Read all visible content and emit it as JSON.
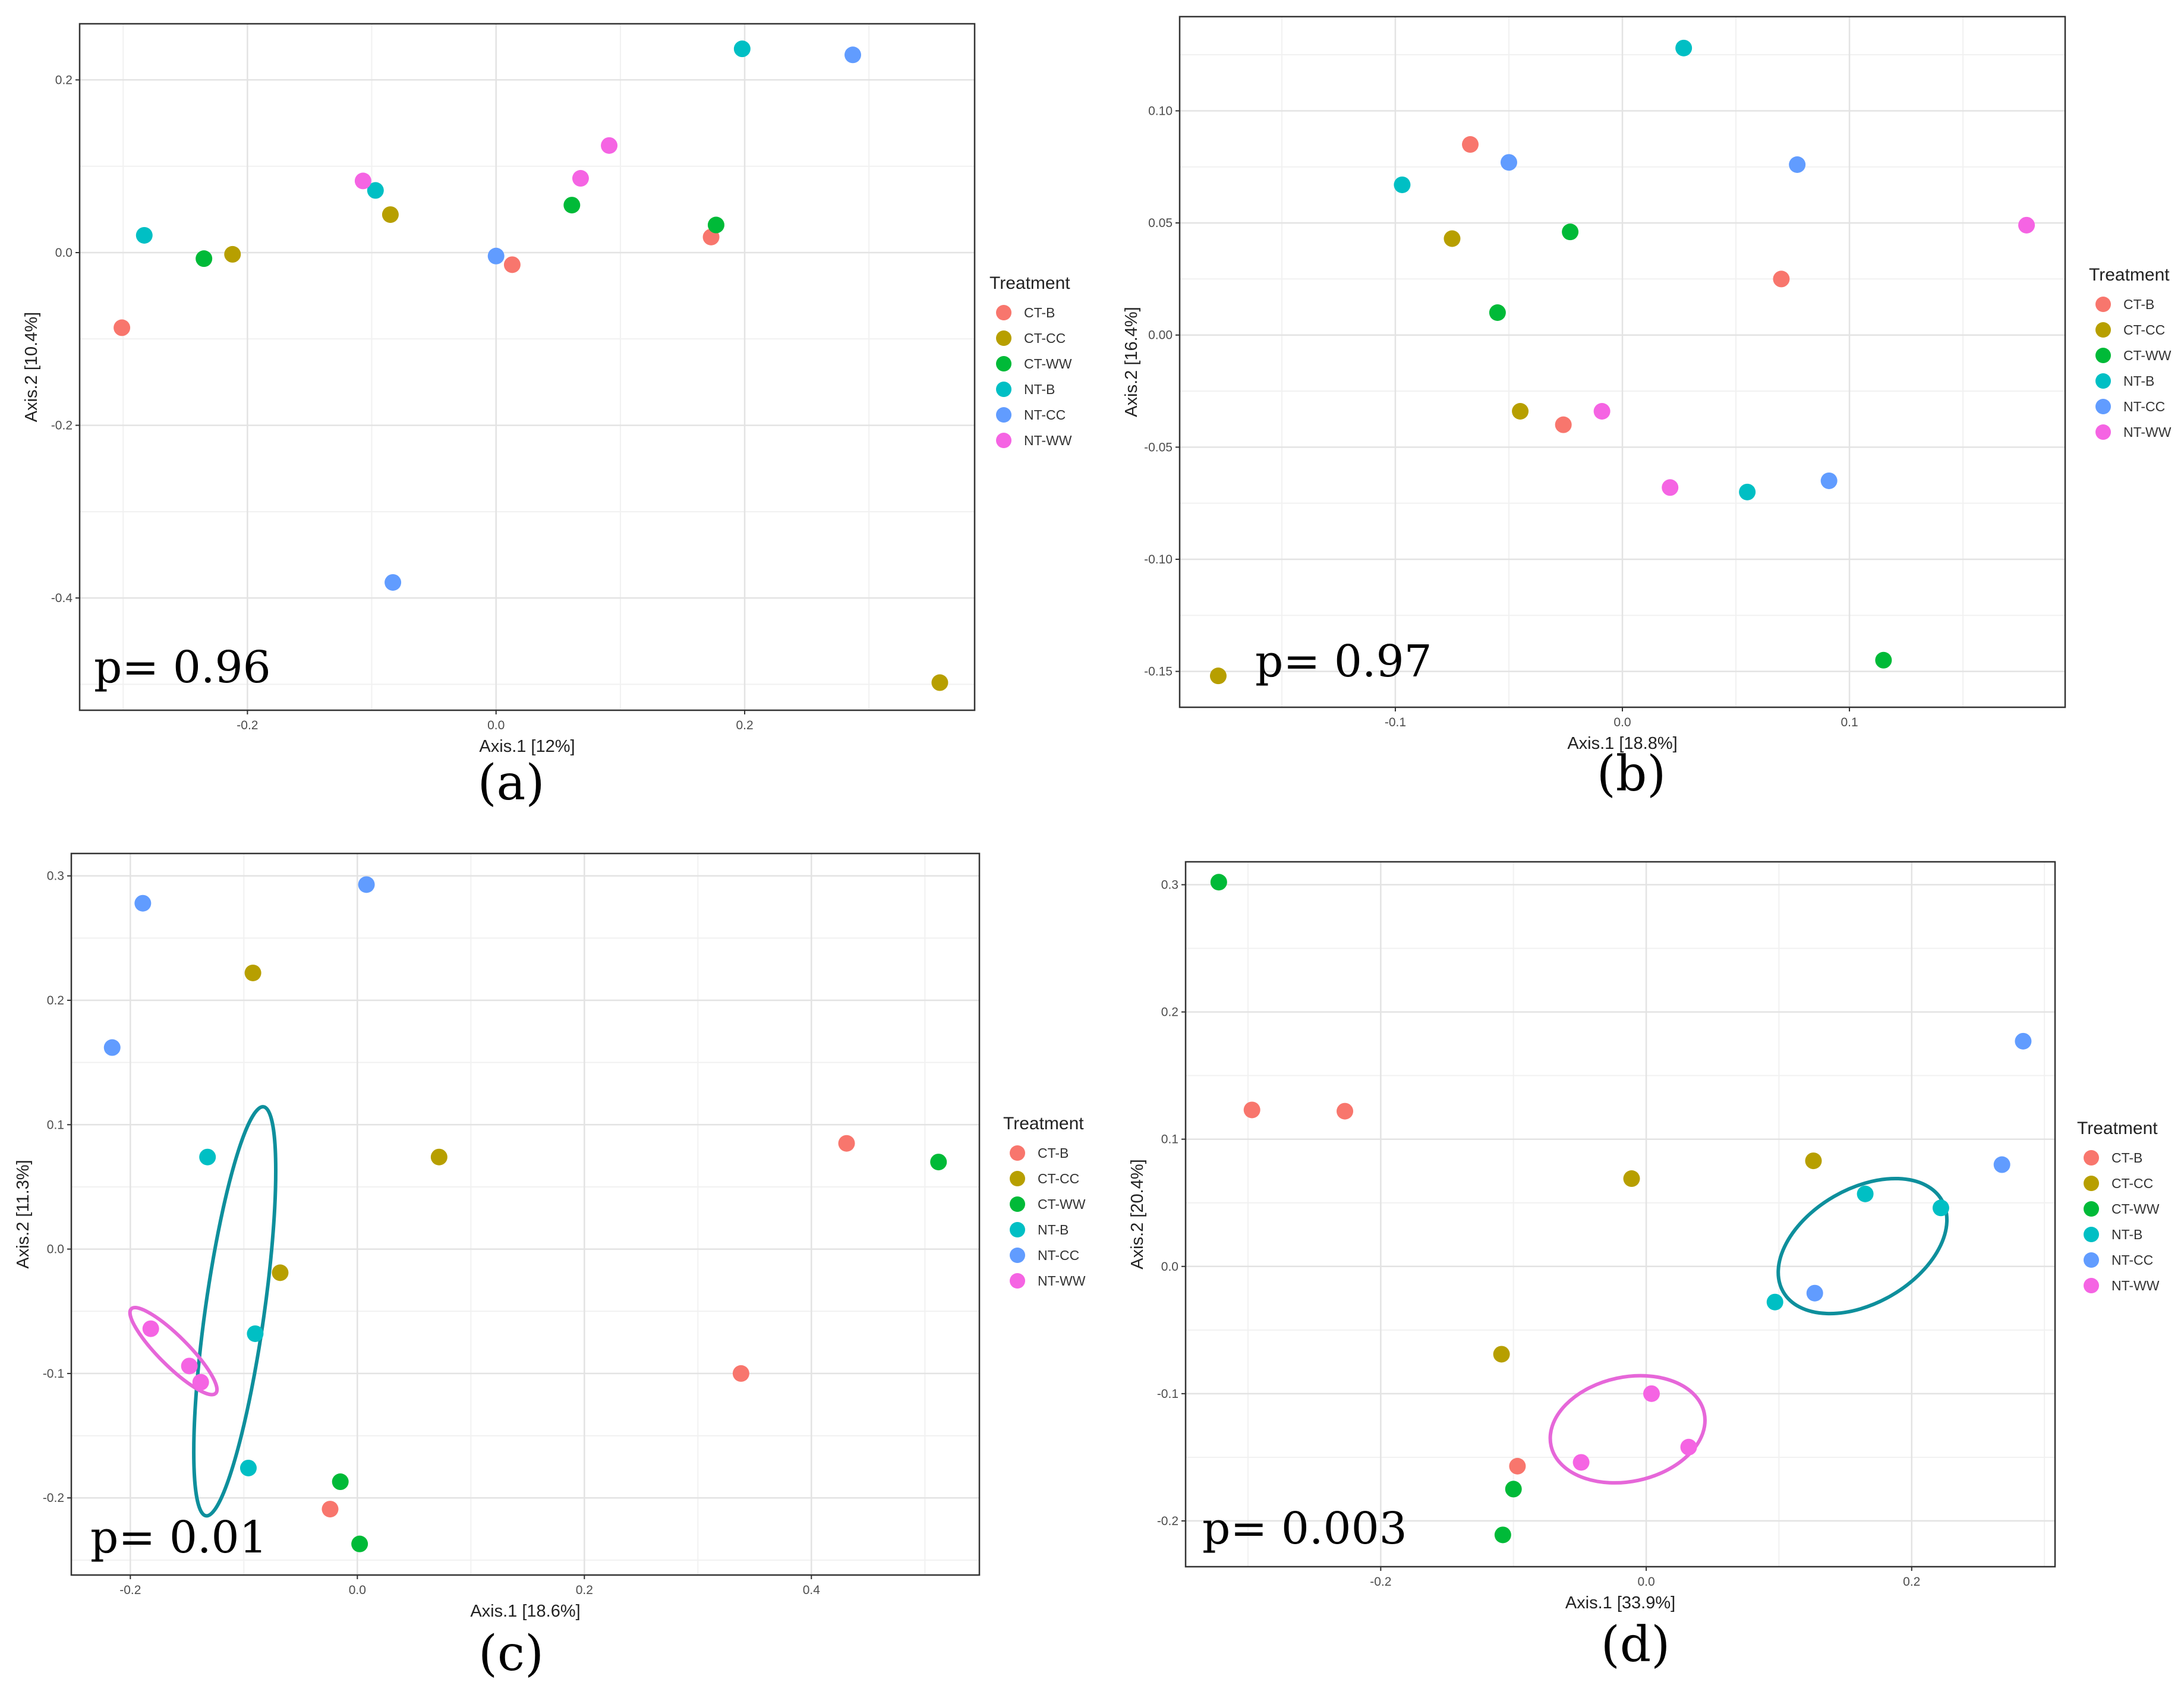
{
  "figure": {
    "legend_title": "Treatment",
    "groups": [
      {
        "name": "CT-B",
        "color": "#F8766D"
      },
      {
        "name": "CT-CC",
        "color": "#B79F00"
      },
      {
        "name": "CT-WW",
        "color": "#00BA38"
      },
      {
        "name": "NT-B",
        "color": "#00BFC4"
      },
      {
        "name": "NT-CC",
        "color": "#619CFF"
      },
      {
        "name": "NT-WW",
        "color": "#F564E3"
      }
    ],
    "ellipse_colors": {
      "teal": "#0E8F9C",
      "pink": "#E667D9"
    }
  },
  "chart_data": [
    {
      "type": "scatter",
      "panel_label": "(a)",
      "p_value": "p= 0.96",
      "xlabel": "Axis.1  [12%]",
      "ylabel": "Axis.2  [10.4%]",
      "xlim": [
        -0.335,
        0.385
      ],
      "ylim": [
        -0.53,
        0.265
      ],
      "xticks": [
        -0.2,
        0.0,
        0.2
      ],
      "xtick_labels": [
        "-0.2",
        "0.0",
        "0.2"
      ],
      "yticks": [
        -0.4,
        -0.2,
        0.0,
        0.2
      ],
      "ytick_labels": [
        "-0.4",
        "-0.2",
        "0.0",
        "0.2"
      ],
      "points": [
        {
          "group": "CT-B",
          "x": -0.301,
          "y": -0.087
        },
        {
          "group": "CT-B",
          "x": 0.013,
          "y": -0.014
        },
        {
          "group": "CT-B",
          "x": 0.173,
          "y": 0.018
        },
        {
          "group": "CT-CC",
          "x": -0.212,
          "y": -0.002
        },
        {
          "group": "CT-CC",
          "x": -0.085,
          "y": 0.044
        },
        {
          "group": "CT-CC",
          "x": 0.357,
          "y": -0.498
        },
        {
          "group": "CT-WW",
          "x": -0.235,
          "y": -0.007
        },
        {
          "group": "CT-WW",
          "x": 0.061,
          "y": 0.055
        },
        {
          "group": "CT-WW",
          "x": 0.177,
          "y": 0.032
        },
        {
          "group": "NT-B",
          "x": -0.283,
          "y": 0.02
        },
        {
          "group": "NT-B",
          "x": -0.097,
          "y": 0.072
        },
        {
          "group": "NT-B",
          "x": 0.198,
          "y": 0.236
        },
        {
          "group": "NT-CC",
          "x": 0.0,
          "y": -0.004
        },
        {
          "group": "NT-CC",
          "x": 0.287,
          "y": 0.229
        },
        {
          "group": "NT-CC",
          "x": -0.083,
          "y": -0.382
        },
        {
          "group": "NT-WW",
          "x": -0.107,
          "y": 0.083
        },
        {
          "group": "NT-WW",
          "x": 0.068,
          "y": 0.086
        },
        {
          "group": "NT-WW",
          "x": 0.091,
          "y": 0.124
        }
      ],
      "ellipses": []
    },
    {
      "type": "scatter",
      "panel_label": "(b)",
      "p_value": "p= 0.97",
      "xlabel": "Axis.1  [18.8%]",
      "ylabel": "Axis.2  [16.4%]",
      "xlim": [
        -0.195,
        0.195
      ],
      "ylim": [
        -0.166,
        0.142
      ],
      "xticks": [
        -0.1,
        0.0,
        0.1
      ],
      "xtick_labels": [
        "-0.1",
        "0.0",
        "0.1"
      ],
      "yticks": [
        -0.15,
        -0.1,
        -0.05,
        0.0,
        0.05,
        0.1
      ],
      "ytick_labels": [
        "-0.15",
        "-0.10",
        "-0.05",
        "0.00",
        "0.05",
        "0.10"
      ],
      "points": [
        {
          "group": "CT-B",
          "x": -0.067,
          "y": 0.085
        },
        {
          "group": "CT-B",
          "x": 0.07,
          "y": 0.025
        },
        {
          "group": "CT-B",
          "x": -0.026,
          "y": -0.04
        },
        {
          "group": "CT-CC",
          "x": -0.075,
          "y": 0.043
        },
        {
          "group": "CT-CC",
          "x": -0.045,
          "y": -0.034
        },
        {
          "group": "CT-CC",
          "x": -0.178,
          "y": -0.152
        },
        {
          "group": "CT-WW",
          "x": -0.023,
          "y": 0.046
        },
        {
          "group": "CT-WW",
          "x": -0.055,
          "y": 0.01
        },
        {
          "group": "CT-WW",
          "x": 0.115,
          "y": -0.145
        },
        {
          "group": "NT-B",
          "x": -0.097,
          "y": 0.067
        },
        {
          "group": "NT-B",
          "x": 0.027,
          "y": 0.128
        },
        {
          "group": "NT-B",
          "x": 0.055,
          "y": -0.07
        },
        {
          "group": "NT-CC",
          "x": -0.05,
          "y": 0.077
        },
        {
          "group": "NT-CC",
          "x": 0.077,
          "y": 0.076
        },
        {
          "group": "NT-CC",
          "x": 0.091,
          "y": -0.065
        },
        {
          "group": "NT-WW",
          "x": 0.178,
          "y": 0.049
        },
        {
          "group": "NT-WW",
          "x": -0.009,
          "y": -0.034
        },
        {
          "group": "NT-WW",
          "x": 0.021,
          "y": -0.068
        }
      ],
      "ellipses": []
    },
    {
      "type": "scatter",
      "panel_label": "(c)",
      "p_value": "p= 0.01",
      "xlabel": "Axis.1  [18.6%]",
      "ylabel": "Axis.2  [11.3%]",
      "xlim": [
        -0.252,
        0.548
      ],
      "ylim": [
        -0.262,
        0.318
      ],
      "xticks": [
        -0.2,
        0.0,
        0.2,
        0.4
      ],
      "xtick_labels": [
        "-0.2",
        "0.0",
        "0.2",
        "0.4"
      ],
      "yticks": [
        -0.2,
        -0.1,
        0.0,
        0.1,
        0.2,
        0.3
      ],
      "ytick_labels": [
        "-0.2",
        "-0.1",
        "0.0",
        "0.1",
        "0.2",
        "0.3"
      ],
      "points": [
        {
          "group": "CT-B",
          "x": 0.431,
          "y": 0.085
        },
        {
          "group": "CT-B",
          "x": 0.338,
          "y": -0.1
        },
        {
          "group": "CT-B",
          "x": -0.024,
          "y": -0.209
        },
        {
          "group": "CT-CC",
          "x": -0.092,
          "y": 0.222
        },
        {
          "group": "CT-CC",
          "x": 0.072,
          "y": 0.074
        },
        {
          "group": "CT-CC",
          "x": -0.068,
          "y": -0.019
        },
        {
          "group": "CT-WW",
          "x": 0.512,
          "y": 0.07
        },
        {
          "group": "CT-WW",
          "x": -0.015,
          "y": -0.187
        },
        {
          "group": "CT-WW",
          "x": 0.002,
          "y": -0.237
        },
        {
          "group": "NT-B",
          "x": -0.132,
          "y": 0.074
        },
        {
          "group": "NT-B",
          "x": -0.09,
          "y": -0.068
        },
        {
          "group": "NT-B",
          "x": -0.096,
          "y": -0.176
        },
        {
          "group": "NT-CC",
          "x": -0.189,
          "y": 0.278
        },
        {
          "group": "NT-CC",
          "x": 0.008,
          "y": 0.293
        },
        {
          "group": "NT-CC",
          "x": -0.216,
          "y": 0.162
        },
        {
          "group": "NT-WW",
          "x": -0.182,
          "y": -0.064
        },
        {
          "group": "NT-WW",
          "x": -0.148,
          "y": -0.094
        },
        {
          "group": "NT-WW",
          "x": -0.138,
          "y": -0.107
        }
      ],
      "ellipses": [
        {
          "group": "NT-B",
          "cx": -0.108,
          "cy": -0.05,
          "rx": 0.026,
          "ry": 0.166,
          "angle_deg": 8
        },
        {
          "group": "NT-WW",
          "cx": -0.162,
          "cy": -0.082,
          "rx": 0.013,
          "ry": 0.048,
          "angle_deg": -45
        }
      ]
    },
    {
      "type": "scatter",
      "panel_label": "(d)",
      "p_value": "p= 0.003",
      "xlabel": "Axis.1  [33.9%]",
      "ylabel": "Axis.2  [20.4%]",
      "xlim": [
        -0.347,
        0.308
      ],
      "ylim": [
        -0.236,
        0.318
      ],
      "xticks": [
        -0.2,
        0.0,
        0.2
      ],
      "xtick_labels": [
        "-0.2",
        "0.0",
        "0.2"
      ],
      "yticks": [
        -0.2,
        -0.1,
        0.0,
        0.1,
        0.2,
        0.3
      ],
      "ytick_labels": [
        "-0.2",
        "-0.1",
        "0.0",
        "0.1",
        "0.2",
        "0.3"
      ],
      "points": [
        {
          "group": "CT-B",
          "x": -0.297,
          "y": 0.123
        },
        {
          "group": "CT-B",
          "x": -0.227,
          "y": 0.122
        },
        {
          "group": "CT-B",
          "x": -0.097,
          "y": -0.157
        },
        {
          "group": "CT-CC",
          "x": -0.011,
          "y": 0.069
        },
        {
          "group": "CT-CC",
          "x": 0.126,
          "y": 0.083
        },
        {
          "group": "CT-CC",
          "x": -0.109,
          "y": -0.069
        },
        {
          "group": "CT-WW",
          "x": -0.322,
          "y": 0.302
        },
        {
          "group": "CT-WW",
          "x": -0.1,
          "y": -0.175
        },
        {
          "group": "CT-WW",
          "x": -0.108,
          "y": -0.211
        },
        {
          "group": "NT-B",
          "x": 0.165,
          "y": 0.057
        },
        {
          "group": "NT-B",
          "x": 0.222,
          "y": 0.046
        },
        {
          "group": "NT-B",
          "x": 0.097,
          "y": -0.028
        },
        {
          "group": "NT-CC",
          "x": 0.284,
          "y": 0.177
        },
        {
          "group": "NT-CC",
          "x": 0.268,
          "y": 0.08
        },
        {
          "group": "NT-CC",
          "x": 0.127,
          "y": -0.021
        },
        {
          "group": "NT-WW",
          "x": 0.004,
          "y": -0.1
        },
        {
          "group": "NT-WW",
          "x": -0.049,
          "y": -0.154
        },
        {
          "group": "NT-WW",
          "x": 0.032,
          "y": -0.142
        }
      ],
      "ellipses": [
        {
          "group": "NT-B",
          "cx": 0.163,
          "cy": 0.016,
          "rx": 0.069,
          "ry": 0.045,
          "angle_deg": -30
        },
        {
          "group": "NT-WW",
          "cx": -0.014,
          "cy": -0.128,
          "rx": 0.059,
          "ry": 0.041,
          "angle_deg": -12
        }
      ]
    }
  ]
}
